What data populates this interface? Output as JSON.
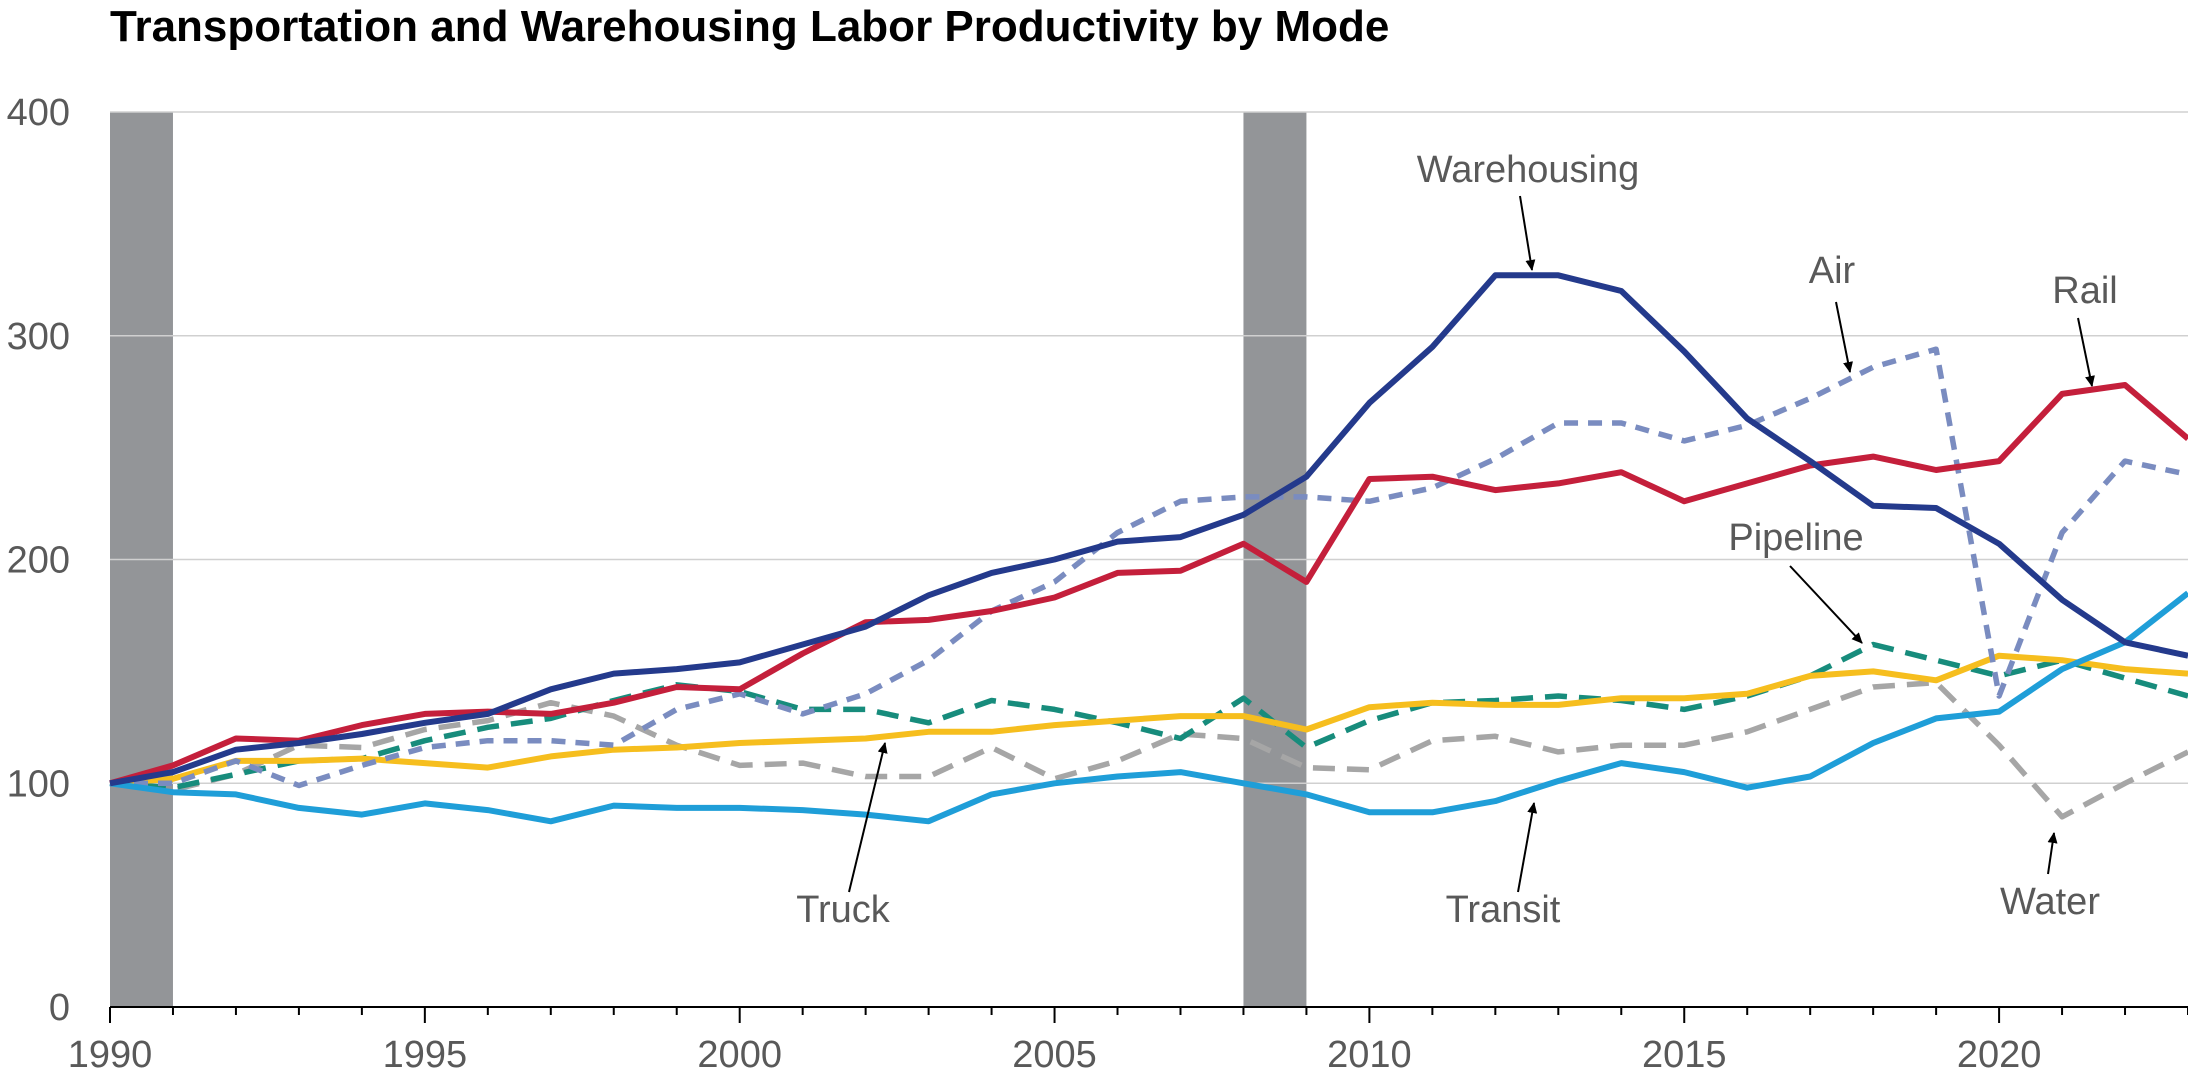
{
  "chart_data": {
    "type": "line",
    "title": "Transportation and Warehousing Labor Productivity by Mode",
    "xlabel": "",
    "ylabel": "",
    "xlim": [
      1990,
      2023
    ],
    "ylim": [
      0,
      400
    ],
    "x_ticks": [
      1990,
      1995,
      2000,
      2005,
      2010,
      2015,
      2020
    ],
    "y_ticks": [
      0,
      100,
      200,
      300,
      400
    ],
    "grid": "horizontal",
    "recessions": [
      [
        1990,
        1991
      ],
      [
        2008,
        2009
      ]
    ],
    "x": [
      1990,
      1991,
      1992,
      1993,
      1994,
      1995,
      1996,
      1997,
      1998,
      1999,
      2000,
      2001,
      2002,
      2003,
      2004,
      2005,
      2006,
      2007,
      2008,
      2009,
      2010,
      2011,
      2012,
      2013,
      2014,
      2015,
      2016,
      2017,
      2018,
      2019,
      2020,
      2021,
      2022,
      2023
    ],
    "series": [
      {
        "name": "Warehousing",
        "color": "#243a8c",
        "dash": "solid",
        "values": [
          100,
          105,
          115,
          118,
          122,
          127,
          131,
          142,
          149,
          151,
          154,
          162,
          170,
          184,
          194,
          200,
          208,
          210,
          220,
          237,
          270,
          295,
          327,
          327,
          320,
          293,
          263,
          244,
          224,
          223,
          207,
          182,
          163,
          157
        ]
      },
      {
        "name": "Rail",
        "color": "#c41f3b",
        "dash": "solid",
        "values": [
          100,
          108,
          120,
          119,
          126,
          131,
          132,
          131,
          136,
          143,
          142,
          158,
          172,
          173,
          177,
          183,
          194,
          195,
          207,
          190,
          236,
          237,
          231,
          234,
          239,
          226,
          234,
          242,
          246,
          240,
          244,
          274,
          278,
          254
        ]
      },
      {
        "name": "Air",
        "color": "#7a8cc0",
        "dash": "dotted",
        "values": [
          100,
          100,
          110,
          99,
          108,
          116,
          119,
          119,
          117,
          133,
          140,
          131,
          140,
          155,
          177,
          190,
          212,
          226,
          228,
          228,
          226,
          232,
          245,
          261,
          261,
          253,
          260,
          272,
          286,
          294,
          139,
          212,
          244,
          238
        ]
      },
      {
        "name": "Pipeline",
        "color": "#178c7c",
        "dash": "dashed",
        "values": [
          100,
          98,
          104,
          110,
          111,
          119,
          125,
          129,
          137,
          144,
          141,
          133,
          133,
          127,
          137,
          133,
          127,
          120,
          138,
          116,
          128,
          136,
          137,
          139,
          137,
          133,
          139,
          148,
          162,
          155,
          148,
          155,
          147,
          139
        ]
      },
      {
        "name": "Truck",
        "color": "#f6be1e",
        "dash": "solid",
        "values": [
          100,
          102,
          110,
          110,
          111,
          109,
          107,
          112,
          115,
          116,
          118,
          119,
          120,
          123,
          123,
          126,
          128,
          130,
          130,
          124,
          134,
          136,
          135,
          135,
          138,
          138,
          140,
          148,
          150,
          146,
          157,
          155,
          151,
          149
        ]
      },
      {
        "name": "Water",
        "color": "#a6a6a6",
        "dash": "dashed",
        "values": [
          100,
          97,
          104,
          117,
          116,
          124,
          128,
          136,
          130,
          117,
          108,
          109,
          103,
          103,
          116,
          102,
          110,
          122,
          120,
          107,
          106,
          119,
          121,
          114,
          117,
          117,
          123,
          133,
          143,
          145,
          117,
          85,
          100,
          114
        ]
      },
      {
        "name": "Transit",
        "color": "#1f9ed8",
        "dash": "solid",
        "values": [
          100,
          96,
          95,
          89,
          86,
          91,
          88,
          83,
          90,
          89,
          89,
          88,
          86,
          83,
          95,
          100,
          103,
          105,
          100,
          95,
          87,
          87,
          92,
          101,
          109,
          105,
          98,
          103,
          118,
          129,
          132,
          151,
          163,
          185
        ]
      }
    ],
    "annotations": [
      {
        "label": "Warehousing",
        "series": "Warehousing"
      },
      {
        "label": "Air",
        "series": "Air"
      },
      {
        "label": "Rail",
        "series": "Rail"
      },
      {
        "label": "Pipeline",
        "series": "Pipeline"
      },
      {
        "label": "Truck",
        "series": "Truck"
      },
      {
        "label": "Transit",
        "series": "Transit"
      },
      {
        "label": "Water",
        "series": "Water"
      }
    ]
  }
}
